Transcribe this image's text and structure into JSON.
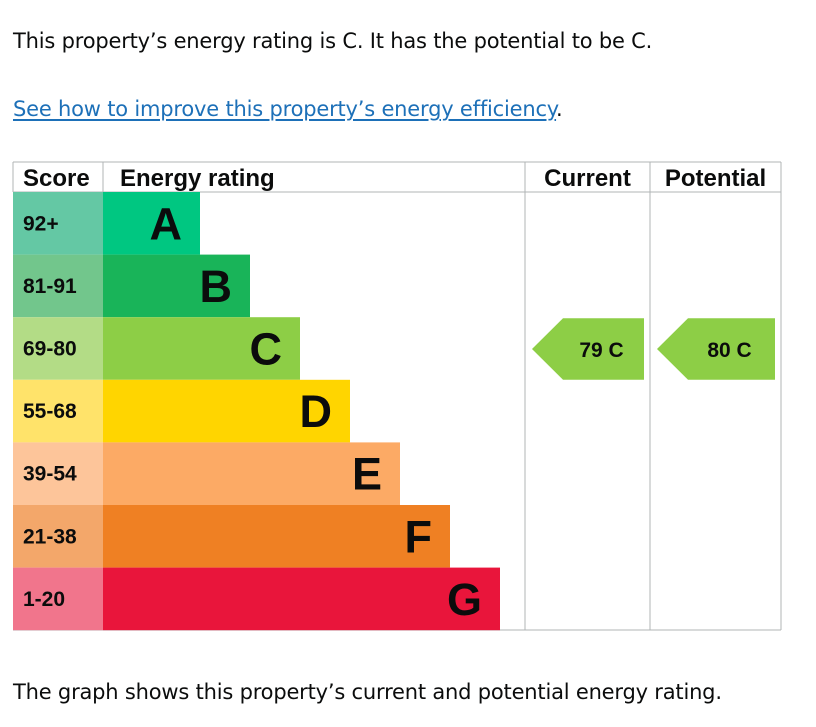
{
  "summary": "This property’s energy rating is C. It has the potential to be C.",
  "improve_link": "See how to improve this property’s energy efficiency",
  "improve_suffix": ".",
  "caption": "The graph shows this property’s current and potential energy rating.",
  "chart_data": {
    "type": "table",
    "headers": {
      "score": "Score",
      "rating": "Energy rating",
      "current": "Current",
      "potential": "Potential"
    },
    "bands": [
      {
        "score": "92+",
        "letter": "A",
        "color": "#00c781",
        "score_bg": "#64c8a4"
      },
      {
        "score": "81-91",
        "letter": "B",
        "color": "#19b459",
        "score_bg": "#72c68c"
      },
      {
        "score": "69-80",
        "letter": "C",
        "color": "#8dce46",
        "score_bg": "#b3dc86"
      },
      {
        "score": "55-68",
        "letter": "D",
        "color": "#ffd500",
        "score_bg": "#ffe36a"
      },
      {
        "score": "39-54",
        "letter": "E",
        "color": "#fcaa65",
        "score_bg": "#fdc59a"
      },
      {
        "score": "21-38",
        "letter": "F",
        "color": "#ef8023",
        "score_bg": "#f3a76a"
      },
      {
        "score": "1-20",
        "letter": "G",
        "color": "#e9153b",
        "score_bg": "#f1758c"
      }
    ],
    "current": {
      "value": 79,
      "band": "C",
      "label": "79 C",
      "color": "#8dce46"
    },
    "potential": {
      "value": 80,
      "band": "C",
      "label": "80 C",
      "color": "#8dce46"
    },
    "border_color": "#b1b4b6"
  }
}
